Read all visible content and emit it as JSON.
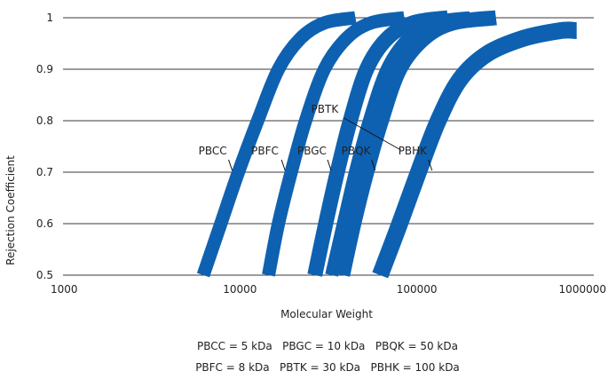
{
  "chart_data": {
    "type": "line",
    "title": "",
    "xlabel": "Molecular Weight",
    "ylabel": "Rejection Coefficient",
    "xscale": "log",
    "xlim": [
      1000,
      1000000
    ],
    "ylim": [
      0.5,
      1.0
    ],
    "xticks": [
      1000,
      10000,
      100000,
      1000000
    ],
    "xtick_labels": [
      "1000",
      "10000",
      "100000",
      "1000000"
    ],
    "yticks": [
      0.5,
      0.6,
      0.7,
      0.8,
      0.9,
      1.0
    ],
    "ytick_labels": [
      "0.5",
      "0.6",
      "0.7",
      "0.8",
      "0.9",
      "1"
    ],
    "grid": "horizontal",
    "series_color": "#0e61b1",
    "series": [
      {
        "name": "PBCC",
        "band": 6,
        "points": [
          [
            6200,
            0.5
          ],
          [
            7800,
            0.6
          ],
          [
            9800,
            0.7
          ],
          [
            12600,
            0.8
          ],
          [
            16500,
            0.9
          ],
          [
            22000,
            0.96
          ],
          [
            30000,
            0.99
          ],
          [
            45000,
            1.0
          ]
        ]
      },
      {
        "name": "PBFC",
        "band": 6,
        "points": [
          [
            14500,
            0.5
          ],
          [
            16500,
            0.6
          ],
          [
            19500,
            0.7
          ],
          [
            23500,
            0.8
          ],
          [
            30000,
            0.9
          ],
          [
            40000,
            0.96
          ],
          [
            55000,
            0.99
          ],
          [
            85000,
            1.0
          ]
        ]
      },
      {
        "name": "PBGC",
        "band": 7,
        "points": [
          [
            26500,
            0.5
          ],
          [
            30500,
            0.6
          ],
          [
            35500,
            0.7
          ],
          [
            42000,
            0.8
          ],
          [
            52000,
            0.9
          ],
          [
            68000,
            0.96
          ],
          [
            95000,
            0.99
          ],
          [
            150000,
            1.0
          ]
        ]
      },
      {
        "name": "PBTK",
        "band": 6,
        "points": [
          [
            33000,
            0.5
          ],
          [
            38500,
            0.6
          ],
          [
            45000,
            0.7
          ],
          [
            54000,
            0.8
          ],
          [
            68000,
            0.9
          ],
          [
            90000,
            0.96
          ],
          [
            125000,
            0.99
          ],
          [
            200000,
            1.0
          ]
        ]
      },
      {
        "name": "PBQK",
        "band": 7,
        "points": [
          [
            38000,
            0.5
          ],
          [
            44000,
            0.6
          ],
          [
            52000,
            0.7
          ],
          [
            63000,
            0.8
          ],
          [
            80000,
            0.9
          ],
          [
            110000,
            0.96
          ],
          [
            160000,
            0.99
          ],
          [
            280000,
            1.0
          ]
        ]
      },
      {
        "name": "PBHK",
        "band": 8,
        "points": [
          [
            62000,
            0.5
          ],
          [
            80000,
            0.6
          ],
          [
            102000,
            0.7
          ],
          [
            132000,
            0.8
          ],
          [
            175000,
            0.88
          ],
          [
            250000,
            0.93
          ],
          [
            400000,
            0.96
          ],
          [
            650000,
            0.975
          ],
          [
            800000,
            0.975
          ]
        ]
      }
    ],
    "annotations": [
      {
        "text": "PBCC",
        "x": 9800,
        "y": 0.7
      },
      {
        "text": "PBFC",
        "x": 19500,
        "y": 0.7
      },
      {
        "text": "PBGC",
        "x": 35500,
        "y": 0.7
      },
      {
        "text": "PBTK",
        "x": 45000,
        "y": 0.8
      },
      {
        "text": "PBQK",
        "x": 63000,
        "y": 0.7
      },
      {
        "text": "PBHK",
        "x": 132000,
        "y": 0.7
      }
    ],
    "legend_lines": [
      "PBCC = 5 kDa   PBGC = 10 kDa   PBQK = 50 kDa",
      "PBFC = 8 kDa   PBTK = 30 kDa   PBHK = 100 kDa"
    ]
  }
}
